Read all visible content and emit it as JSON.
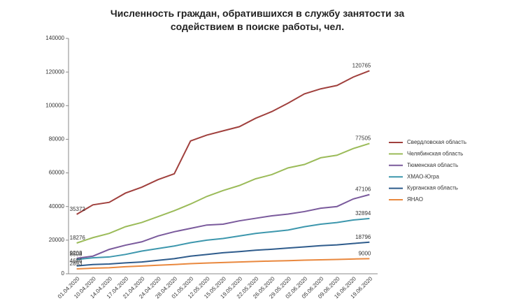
{
  "chart_data": {
    "type": "line",
    "title": "Численность граждан, обратившихся в службу занятости за содействием в поиске работы, чел.",
    "categories": [
      "01.04.2020",
      "10.04.2020",
      "14.04.2020",
      "17.04.2020",
      "21.04.2020",
      "24.04.2020",
      "28.04.2020",
      "01.05.2020",
      "12.05.2020",
      "15.05.2020",
      "19.05.2020",
      "22.05.2020",
      "26.05.2020",
      "29.05.2020",
      "02.06.2020",
      "05.06.2020",
      "09.06.2020",
      "16.06.2020",
      "19.06.2020"
    ],
    "series": [
      {
        "name": "Свердловская область",
        "color": "#a0403d",
        "values": [
          35372,
          41000,
          42500,
          48000,
          51500,
          56000,
          59500,
          79000,
          82500,
          85000,
          87500,
          92500,
          96500,
          101500,
          107000,
          110000,
          112000,
          117000,
          120765
        ]
      },
      {
        "name": "Челябинская область",
        "color": "#9bbb59",
        "values": [
          18276,
          21500,
          24000,
          28000,
          30500,
          34000,
          37500,
          41500,
          46000,
          49500,
          52500,
          56500,
          59000,
          63000,
          65000,
          69000,
          70500,
          74500,
          77505
        ]
      },
      {
        "name": "Тюменская область",
        "color": "#7a5a9c",
        "values": [
          9203,
          10500,
          14500,
          17000,
          19000,
          22500,
          25000,
          27000,
          29000,
          29500,
          31500,
          33000,
          34500,
          35500,
          37000,
          39000,
          40000,
          44500,
          47106
        ]
      },
      {
        "name": "ХМАО-Югра",
        "color": "#3d97ad",
        "values": [
          8508,
          9500,
          10000,
          11500,
          13500,
          15000,
          16500,
          18500,
          20000,
          21000,
          22500,
          24000,
          25000,
          26000,
          28000,
          29500,
          30500,
          32000,
          32894
        ]
      },
      {
        "name": "Курганская область",
        "color": "#2f5c8c",
        "values": [
          4686,
          5500,
          5800,
          6500,
          7000,
          8000,
          9000,
          10500,
          11500,
          12500,
          13200,
          14000,
          14600,
          15300,
          16000,
          16700,
          17200,
          18000,
          18796
        ]
      },
      {
        "name": "ЯНАО",
        "color": "#e9883e",
        "values": [
          2893,
          3300,
          3600,
          4200,
          4600,
          5100,
          5500,
          6000,
          6400,
          6700,
          7000,
          7300,
          7600,
          7800,
          8100,
          8300,
          8500,
          8800,
          9000
        ]
      }
    ],
    "ylim": [
      0,
      140000
    ],
    "yticks": [
      0,
      20000,
      40000,
      60000,
      80000,
      100000,
      120000,
      140000
    ],
    "legend": "right"
  }
}
